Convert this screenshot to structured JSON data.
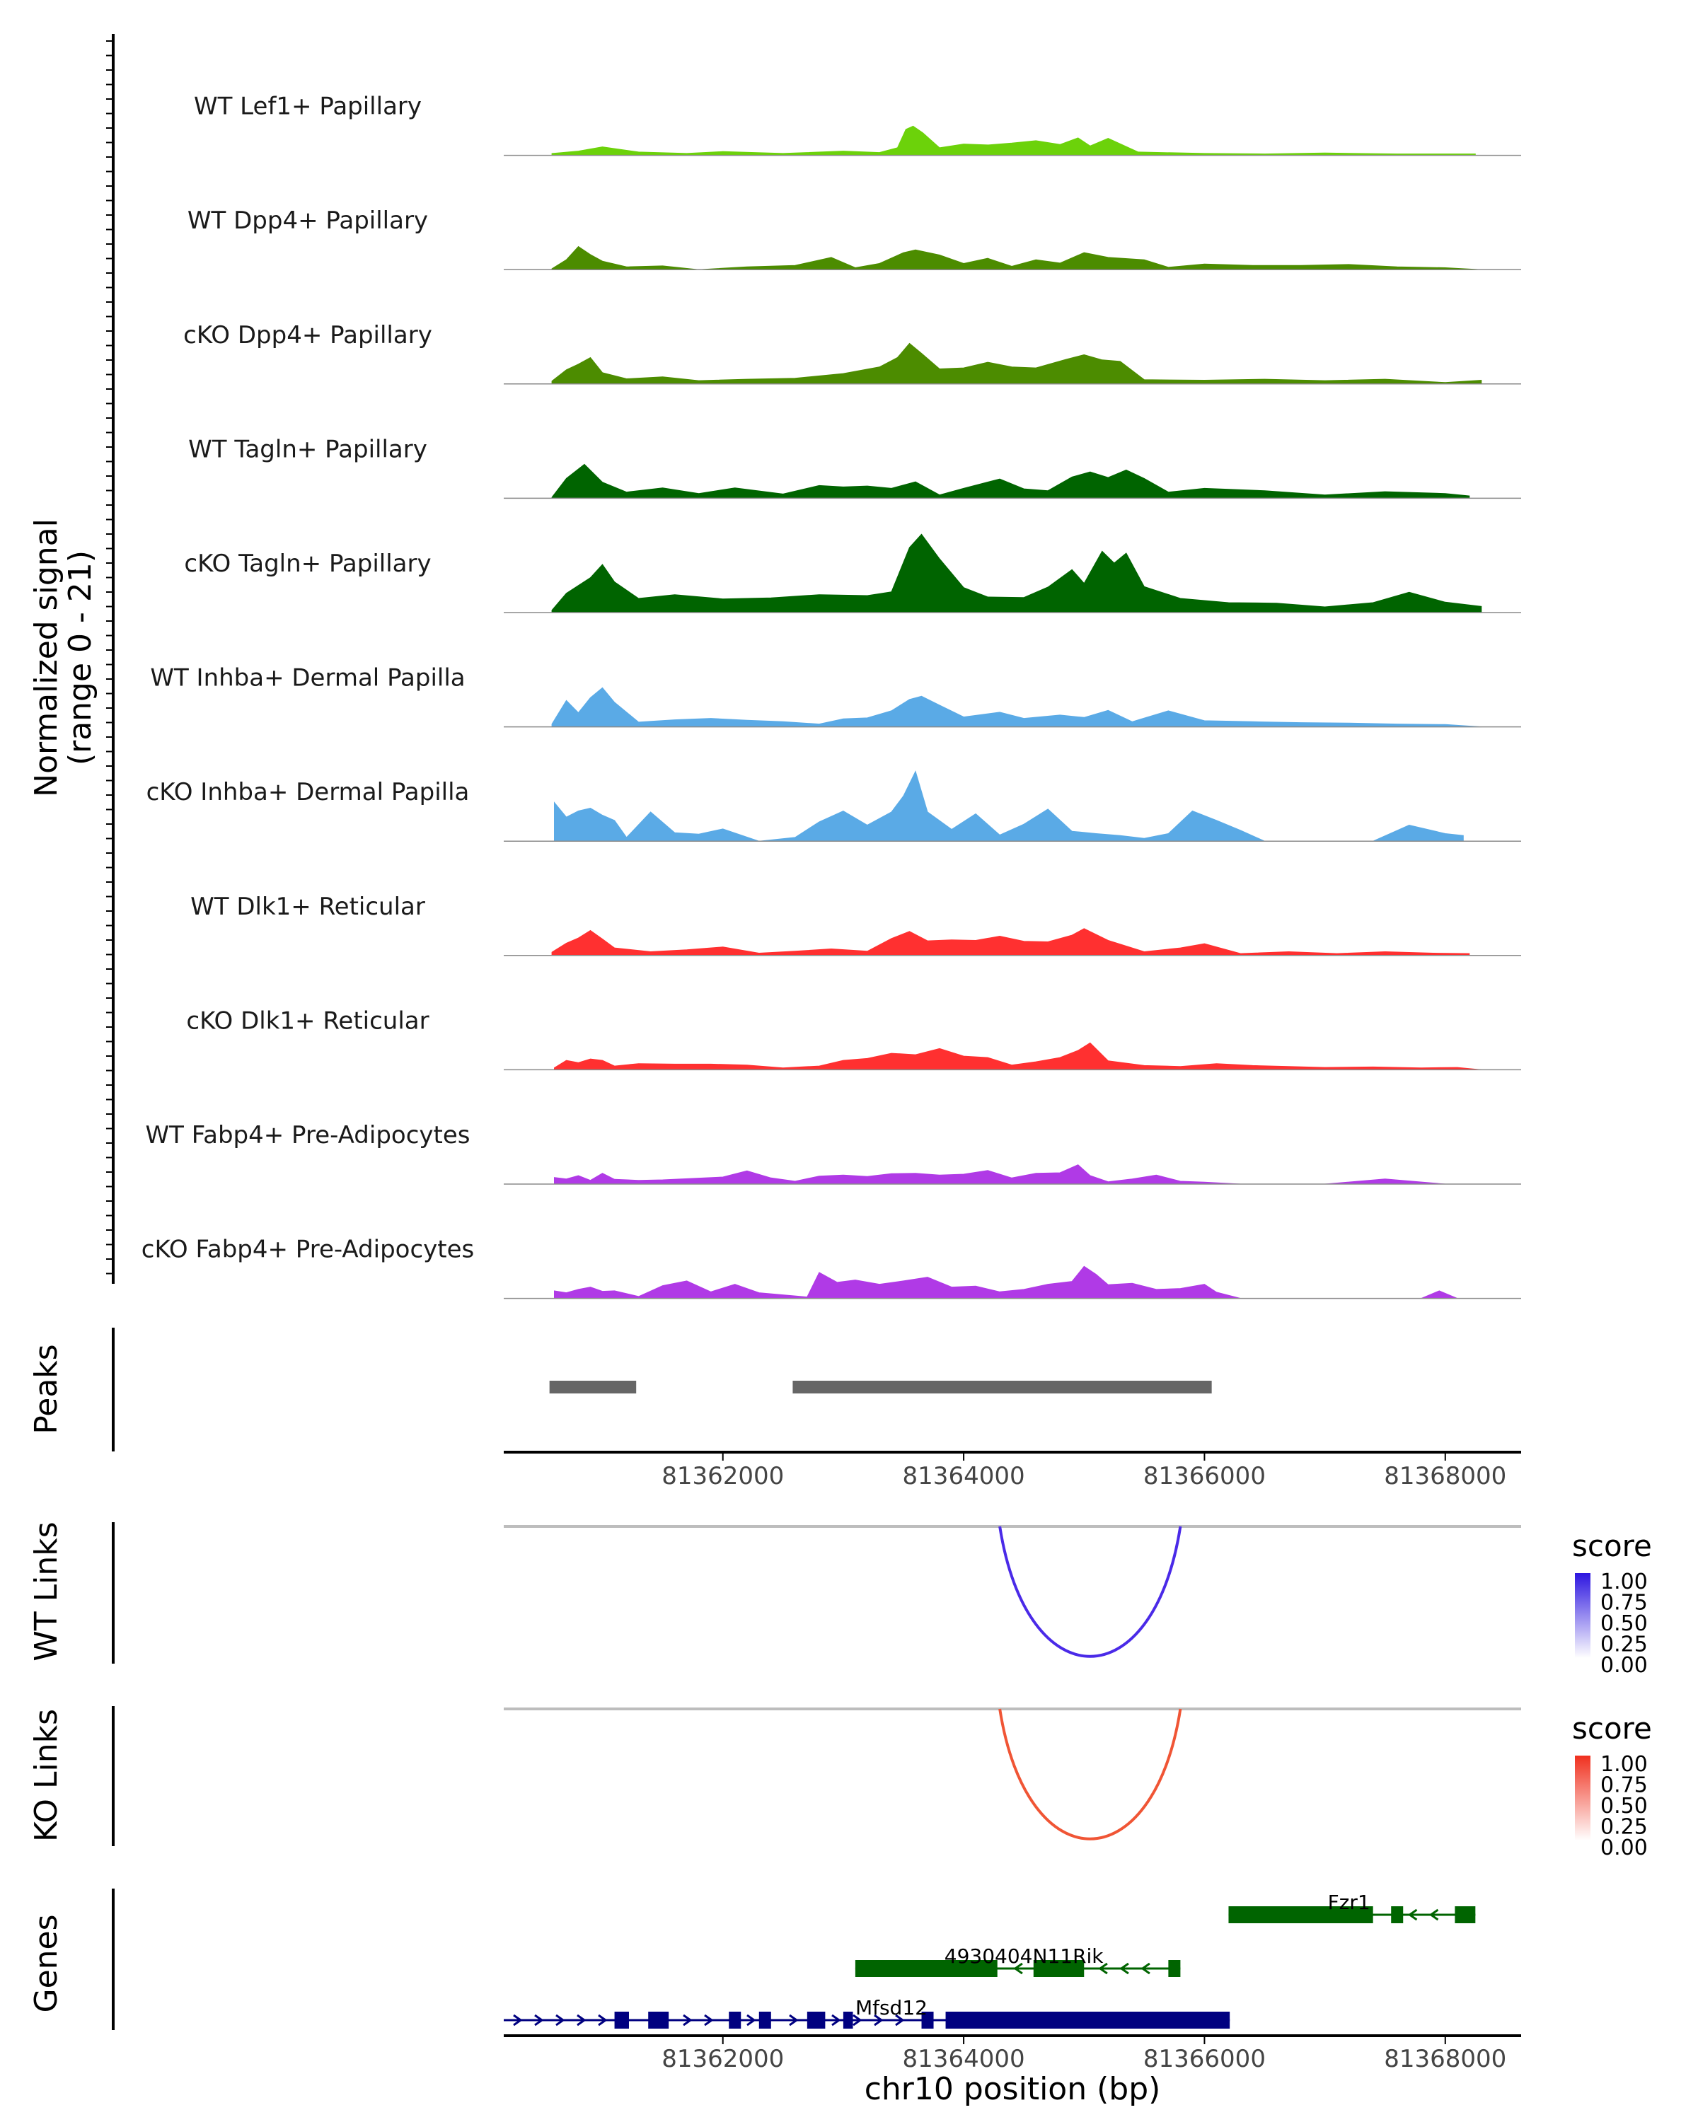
{
  "chart_data": {
    "type": "area",
    "title": "",
    "xlabel": "chr10 position (bp)",
    "xlim": [
      81360180,
      81368630
    ],
    "x_ticks": [
      81362000,
      81364000,
      81366000,
      81368000
    ],
    "x_tick_labels": [
      "81362000",
      "81364000",
      "81366000",
      "81368000"
    ],
    "signal_ylabel": "Normalized signal",
    "signal_range_label": "(range 0 - 21)",
    "signal_ylim": [
      0,
      21
    ],
    "track_labels": {
      "peaks": "Peaks",
      "wt_links": "WT Links",
      "ko_links": "KO Links",
      "genes": "Genes"
    },
    "series": [
      {
        "name": "WT Lef1+ Papillary",
        "color": "#6cd20a",
        "x": [
          81360580,
          81360800,
          81361000,
          81361300,
          81361700,
          81362000,
          81362500,
          81363000,
          81363300,
          81363450,
          81363520,
          81363580,
          81363660,
          81363800,
          81364000,
          81364200,
          81364400,
          81364600,
          81364800,
          81364950,
          81365050,
          81365200,
          81365450,
          81366000,
          81366500,
          81367000,
          81367600,
          81368250
        ],
        "values": [
          0.4,
          0.9,
          1.8,
          0.7,
          0.4,
          0.8,
          0.4,
          0.9,
          0.6,
          1.6,
          5.5,
          6.2,
          4.8,
          1.6,
          2.4,
          2.2,
          2.6,
          3.1,
          2.3,
          3.7,
          2.0,
          3.6,
          0.7,
          0.4,
          0.3,
          0.5,
          0.3,
          0.3
        ]
      },
      {
        "name": "WT Dpp4+ Papillary",
        "color": "#4c8c00",
        "x": [
          81360580,
          81360700,
          81360800,
          81360900,
          81361000,
          81361200,
          81361500,
          81361800,
          81362200,
          81362600,
          81362900,
          81363100,
          81363300,
          81363500,
          81363600,
          81363800,
          81364000,
          81364200,
          81364400,
          81364600,
          81364800,
          81365000,
          81365200,
          81365500,
          81365700,
          81366000,
          81366400,
          81366800,
          81367200,
          81367600,
          81368000,
          81368300
        ],
        "values": [
          0.2,
          2.1,
          4.9,
          3.2,
          1.8,
          0.6,
          0.8,
          0,
          0.6,
          0.9,
          2.6,
          0.4,
          1.3,
          3.6,
          4.2,
          3.1,
          1.3,
          2.4,
          0.7,
          2.1,
          1.4,
          3.6,
          2.6,
          2.1,
          0.5,
          1.2,
          0.9,
          0.9,
          1.1,
          0.6,
          0.4,
          0
        ]
      },
      {
        "name": "cKO Dpp4+ Papillary",
        "color": "#4c8c00",
        "x": [
          81360580,
          81360700,
          81360800,
          81360900,
          81361000,
          81361200,
          81361500,
          81361800,
          81362200,
          81362600,
          81363000,
          81363300,
          81363450,
          81363550,
          81363650,
          81363800,
          81364000,
          81364200,
          81364400,
          81364600,
          81364850,
          81365000,
          81365150,
          81365300,
          81365500,
          81366000,
          81366500,
          81367000,
          81367500,
          81368000,
          81368300
        ],
        "values": [
          0.6,
          3.0,
          4.2,
          5.6,
          2.4,
          1.1,
          1.5,
          0.7,
          1.0,
          1.2,
          2.2,
          3.6,
          5.6,
          8.6,
          6.5,
          3.2,
          3.4,
          4.6,
          3.6,
          3.4,
          5.2,
          6.2,
          5.1,
          4.8,
          0.9,
          0.8,
          1.0,
          0.7,
          1.0,
          0.3,
          0.8
        ]
      },
      {
        "name": "WT Tagln+ Papillary",
        "color": "#006400",
        "x": [
          81360580,
          81360700,
          81360850,
          81361000,
          81361200,
          81361500,
          81361800,
          81362100,
          81362500,
          81362800,
          81363000,
          81363200,
          81363400,
          81363600,
          81363800,
          81364000,
          81364300,
          81364500,
          81364700,
          81364900,
          81365050,
          81365200,
          81365350,
          81365500,
          81365700,
          81366000,
          81366500,
          81367000,
          81367500,
          81368000,
          81368200
        ],
        "values": [
          0.2,
          4.2,
          7.2,
          3.4,
          1.3,
          2.2,
          1.0,
          2.2,
          0.9,
          2.7,
          2.4,
          2.6,
          2.1,
          3.5,
          0.7,
          2.1,
          4.1,
          2.0,
          1.6,
          4.5,
          5.6,
          4.4,
          6.0,
          4.2,
          1.3,
          2.1,
          1.6,
          0.7,
          1.4,
          1.0,
          0.5
        ]
      },
      {
        "name": "cKO Tagln+ Papillary",
        "color": "#006400",
        "x": [
          81360580,
          81360700,
          81360900,
          81361000,
          81361100,
          81361300,
          81361600,
          81362000,
          81362400,
          81362800,
          81363200,
          81363400,
          81363550,
          81363650,
          81363800,
          81364000,
          81364200,
          81364500,
          81364700,
          81364900,
          81365000,
          81365150,
          81365250,
          81365350,
          81365500,
          81365800,
          81366200,
          81366600,
          81367000,
          81367400,
          81367700,
          81368000,
          81368300
        ],
        "values": [
          0.5,
          4.1,
          7.4,
          10.2,
          6.5,
          3.0,
          3.8,
          2.9,
          3.1,
          3.8,
          3.6,
          4.4,
          13.8,
          16.6,
          11.4,
          5.3,
          3.3,
          3.2,
          5.4,
          9.1,
          6.2,
          13.0,
          10.5,
          12.6,
          5.5,
          3.0,
          2.1,
          2.0,
          1.2,
          2.1,
          4.3,
          2.2,
          1.3
        ]
      },
      {
        "name": "WT Inhba+ Dermal Papilla",
        "color": "#5aaae6",
        "x": [
          81360580,
          81360700,
          81360800,
          81360900,
          81361000,
          81361100,
          81361300,
          81361600,
          81361900,
          81362200,
          81362500,
          81362800,
          81363000,
          81363200,
          81363400,
          81363550,
          81363650,
          81363800,
          81364000,
          81364300,
          81364500,
          81364800,
          81365000,
          81365200,
          81365400,
          81365700,
          81366000,
          81366400,
          81366800,
          81367200,
          81367600,
          81368000,
          81368300
        ],
        "values": [
          0.6,
          5.6,
          3.0,
          6.2,
          8.3,
          5.2,
          1.0,
          1.5,
          1.8,
          1.4,
          1.1,
          0.6,
          1.7,
          1.9,
          3.4,
          5.8,
          6.5,
          4.6,
          2.1,
          3.1,
          1.8,
          2.5,
          2.0,
          3.5,
          1.1,
          3.4,
          1.3,
          1.1,
          0.9,
          0.8,
          0.6,
          0.5,
          0
        ]
      },
      {
        "name": "cKO Inhba+ Dermal Papilla",
        "color": "#5aaae6",
        "x": [
          81360600,
          81360700,
          81360800,
          81360900,
          81361000,
          81361100,
          81361200,
          81361400,
          81361600,
          81361800,
          81362000,
          81362300,
          81362600,
          81362800,
          81363000,
          81363200,
          81363400,
          81363500,
          81363600,
          81363700,
          81363900,
          81364100,
          81364300,
          81364500,
          81364700,
          81364900,
          81365100,
          81365300,
          81365500,
          81365700,
          81365900,
          81366100,
          81366300,
          81366500,
          81366800,
          81367100,
          81367400,
          81367700,
          81368000,
          81368150
        ],
        "values": [
          8.2,
          5.1,
          6.4,
          7.0,
          5.5,
          4.4,
          0.8,
          6.2,
          1.8,
          1.5,
          2.6,
          0,
          0.8,
          4.1,
          6.4,
          3.4,
          6.2,
          9.6,
          14.8,
          6.2,
          2.5,
          5.8,
          1.3,
          3.6,
          6.8,
          2.1,
          1.6,
          1.2,
          0.6,
          1.6,
          6.4,
          4.4,
          2.3,
          0,
          0,
          0,
          0,
          3.4,
          1.6,
          1.2
        ]
      },
      {
        "name": "WT Dlk1+ Reticular",
        "color": "#ff3030",
        "x": [
          81360580,
          81360700,
          81360800,
          81360900,
          81361000,
          81361100,
          81361400,
          81361700,
          81362000,
          81362300,
          81362600,
          81362900,
          81363200,
          81363400,
          81363550,
          81363700,
          81363900,
          81364100,
          81364300,
          81364500,
          81364700,
          81364900,
          81365000,
          81365200,
          81365500,
          81365800,
          81366000,
          81366300,
          81366700,
          81367100,
          81367500,
          81367900,
          81368200
        ],
        "values": [
          0.7,
          2.6,
          3.7,
          5.3,
          3.5,
          1.6,
          0.8,
          1.2,
          1.8,
          0.5,
          0.9,
          1.4,
          0.9,
          3.6,
          5.1,
          3.1,
          3.3,
          3.2,
          4.1,
          3.0,
          2.9,
          4.3,
          5.7,
          3.2,
          0.8,
          1.6,
          2.5,
          0.4,
          0.8,
          0.4,
          0.8,
          0.5,
          0.4
        ]
      },
      {
        "name": "cKO Dlk1+ Reticular",
        "color": "#ff3030",
        "x": [
          81360600,
          81360700,
          81360800,
          81360900,
          81361000,
          81361100,
          81361300,
          81361600,
          81361900,
          81362200,
          81362500,
          81362800,
          81363000,
          81363200,
          81363400,
          81363600,
          81363800,
          81364000,
          81364200,
          81364400,
          81364600,
          81364800,
          81364950,
          81365050,
          81365200,
          81365500,
          81365800,
          81366100,
          81366400,
          81366700,
          81367000,
          81367400,
          81367800,
          81368100,
          81368300
        ],
        "values": [
          0.4,
          2.0,
          1.5,
          2.3,
          2.0,
          0.8,
          1.3,
          1.2,
          1.2,
          1.0,
          0.4,
          0.8,
          2.0,
          2.4,
          3.5,
          3.2,
          4.5,
          2.9,
          2.6,
          1.0,
          1.7,
          2.6,
          4.1,
          5.7,
          1.9,
          0.9,
          0.7,
          1.3,
          0.9,
          0.7,
          0.5,
          0.6,
          0.4,
          0.5,
          0
        ]
      },
      {
        "name": "WT Fabp4+ Pre-Adipocytes",
        "color": "#b03ae6",
        "x": [
          81360600,
          81360700,
          81360800,
          81360900,
          81361000,
          81361100,
          81361300,
          81361500,
          81362000,
          81362200,
          81362400,
          81362600,
          81362800,
          81363000,
          81363200,
          81363400,
          81363600,
          81363800,
          81364000,
          81364200,
          81364400,
          81364600,
          81364800,
          81364950,
          81365050,
          81365200,
          81365400,
          81365600,
          81365800,
          81366000,
          81366300,
          81366600,
          81367000,
          81367500,
          81368000
        ],
        "values": [
          1.4,
          1.1,
          1.8,
          0.8,
          2.3,
          1.0,
          0.8,
          0.9,
          1.5,
          2.8,
          1.3,
          0.6,
          1.7,
          1.9,
          1.6,
          2.2,
          2.3,
          1.9,
          2.1,
          2.9,
          1.3,
          2.3,
          2.4,
          4.1,
          1.8,
          0.5,
          1.1,
          1.9,
          0.6,
          0.4,
          0,
          0,
          0,
          1.1,
          0
        ]
      },
      {
        "name": "cKO Fabp4+ Pre-Adipocytes",
        "color": "#b03ae6",
        "x": [
          81360600,
          81360700,
          81360800,
          81360900,
          81361000,
          81361100,
          81361300,
          81361500,
          81361700,
          81361900,
          81362100,
          81362300,
          81362700,
          81362800,
          81362950,
          81363100,
          81363300,
          81363500,
          81363700,
          81363900,
          81364100,
          81364300,
          81364500,
          81364700,
          81364900,
          81365000,
          81365100,
          81365200,
          81365400,
          81365600,
          81365800,
          81366000,
          81366100,
          81366300,
          81367000,
          81367800,
          81367950,
          81368100
        ],
        "values": [
          1.6,
          1.2,
          1.9,
          2.4,
          1.5,
          1.6,
          0.4,
          2.7,
          3.7,
          1.4,
          3.0,
          1.2,
          0.3,
          5.5,
          3.4,
          3.9,
          3.0,
          3.7,
          4.5,
          2.4,
          2.6,
          1.4,
          1.9,
          3.0,
          3.6,
          6.8,
          5.1,
          2.9,
          3.2,
          1.9,
          2.1,
          3.0,
          1.3,
          0,
          0,
          0,
          1.6,
          0
        ]
      }
    ],
    "peaks": [
      {
        "start": 81360560,
        "end": 81361280
      },
      {
        "start": 81362580,
        "end": 81366060
      }
    ],
    "links": [
      {
        "track": "wt_links",
        "start": 81364300,
        "end": 81365800,
        "score": 1.0,
        "color": "#4a2ae8"
      },
      {
        "track": "ko_links",
        "start": 81364300,
        "end": 81365800,
        "score": 1.0,
        "color": "#f05535"
      }
    ],
    "wt_legend": {
      "title": "score",
      "ticks": [
        "1.00",
        "0.75",
        "0.50",
        "0.25",
        "0.00"
      ],
      "color": "#2d16e0"
    },
    "ko_legend": {
      "title": "score",
      "ticks": [
        "1.00",
        "0.75",
        "0.50",
        "0.25",
        "0.00"
      ],
      "color": "#f0301e"
    },
    "genes": [
      {
        "name": "Fzr1",
        "strand": "-",
        "color": "#006400",
        "start": 81366200,
        "end": 81368250,
        "exons": [
          [
            81366200,
            81367400
          ],
          [
            81367550,
            81367650
          ],
          [
            81368080,
            81368250
          ]
        ],
        "thick_exons": [
          [
            81366200,
            81367400
          ],
          [
            81367550,
            81367650
          ],
          [
            81368080,
            81368250
          ]
        ]
      },
      {
        "name": "4930404N11Rik",
        "strand": "-",
        "color": "#006400",
        "start": 81363100,
        "end": 81365800,
        "exons": [
          [
            81363100,
            81364280
          ],
          [
            81364580,
            81365000
          ],
          [
            81365700,
            81365800
          ]
        ],
        "thick_exons": [
          [
            81363100,
            81364280
          ],
          [
            81364580,
            81365000
          ],
          [
            81365700,
            81365800
          ]
        ]
      },
      {
        "name": "Mfsd12",
        "strand": "+",
        "color": "#000080",
        "start": 81360180,
        "end": 81366210,
        "exons": [
          [
            81361100,
            81361220
          ],
          [
            81361380,
            81361550
          ],
          [
            81362050,
            81362150
          ],
          [
            81362300,
            81362400
          ],
          [
            81362700,
            81362850
          ],
          [
            81363000,
            81363080
          ],
          [
            81363650,
            81363750
          ],
          [
            81363850,
            81366210
          ]
        ],
        "thick_exons": [
          [
            81361100,
            81361220
          ],
          [
            81361380,
            81361550
          ],
          [
            81362050,
            81362150
          ],
          [
            81362300,
            81362400
          ],
          [
            81362700,
            81362850
          ],
          [
            81363000,
            81363080
          ],
          [
            81363650,
            81363750
          ],
          [
            81363850,
            81366210
          ]
        ]
      }
    ]
  }
}
